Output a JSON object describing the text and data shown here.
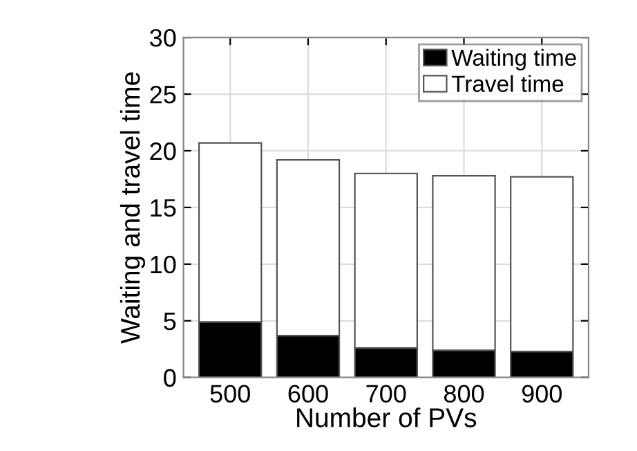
{
  "chart_data": {
    "type": "bar",
    "stacked": true,
    "xlabel": "Number of PVs",
    "ylabel": "Waiting and travel time",
    "categories": [
      "500",
      "600",
      "700",
      "800",
      "900"
    ],
    "series": [
      {
        "name": "Waiting time",
        "color": "#000000",
        "values": [
          4.9,
          3.7,
          2.6,
          2.4,
          2.3
        ]
      },
      {
        "name": "Travel time",
        "color": "#ffffff",
        "values": [
          15.8,
          15.5,
          15.4,
          15.4,
          15.4
        ]
      }
    ],
    "ylim": [
      0,
      30
    ],
    "yticks": [
      0,
      5,
      10,
      15,
      20,
      25,
      30
    ],
    "grid": true,
    "legend": "top right"
  }
}
